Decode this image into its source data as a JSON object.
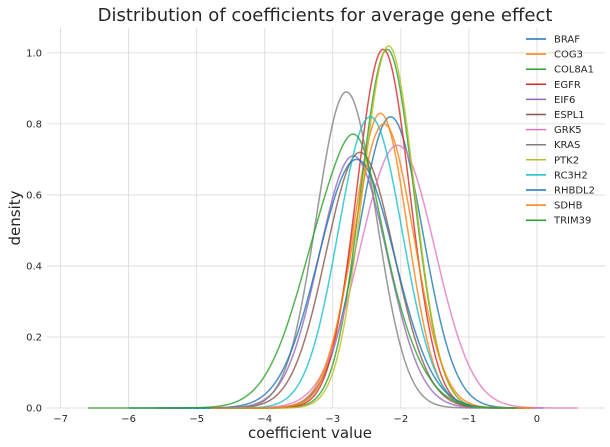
{
  "chart_data": {
    "type": "line",
    "title": "Distribution of coefficients for average gene effect",
    "xlabel": "coefficient value",
    "ylabel": "density",
    "xlim": [
      -7.2,
      1.0
    ],
    "ylim": [
      0,
      1.07
    ],
    "xticks": [
      "−7",
      "−6",
      "−5",
      "−4",
      "−3",
      "−2",
      "−1",
      "0"
    ],
    "yticks": [
      "0.0",
      "0.2",
      "0.4",
      "0.6",
      "0.8",
      "1.0"
    ],
    "grid": true,
    "legend_position": "top-right",
    "series": [
      {
        "name": "BRAF",
        "color": "#1f77b4",
        "mean": -2.15,
        "sd": 0.47,
        "peak": 0.82,
        "xmin": -4.5,
        "xmax": 0.1
      },
      {
        "name": "COG3",
        "color": "#ff7f0e",
        "mean": -2.3,
        "sd": 0.4,
        "peak": 0.83,
        "xmin": -4.6,
        "xmax": 0.0
      },
      {
        "name": "COL8A1",
        "color": "#2ca02c",
        "mean": -2.2,
        "sd": 0.39,
        "peak": 1.01,
        "xmin": -4.5,
        "xmax": -0.2
      },
      {
        "name": "EGFR",
        "color": "#d62728",
        "mean": -2.26,
        "sd": 0.39,
        "peak": 1.01,
        "xmin": -4.7,
        "xmax": -0.2
      },
      {
        "name": "EIF6",
        "color": "#9467bd",
        "mean": -2.7,
        "sd": 0.5,
        "peak": 0.71,
        "xmin": -5.4,
        "xmax": -0.4
      },
      {
        "name": "ESPL1",
        "color": "#8c564b",
        "mean": -2.6,
        "sd": 0.5,
        "peak": 0.72,
        "xmin": -5.5,
        "xmax": -0.4
      },
      {
        "name": "GRK5",
        "color": "#e377c2",
        "mean": -2.05,
        "sd": 0.55,
        "peak": 0.74,
        "xmin": -4.8,
        "xmax": 0.6
      },
      {
        "name": "KRAS",
        "color": "#7f7f7f",
        "mean": -2.8,
        "sd": 0.44,
        "peak": 0.89,
        "xmin": -5.6,
        "xmax": -0.5
      },
      {
        "name": "PTK2",
        "color": "#bcbd22",
        "mean": -2.18,
        "sd": 0.38,
        "peak": 1.02,
        "xmin": -4.5,
        "xmax": -0.1
      },
      {
        "name": "RC3H2",
        "color": "#17becf",
        "mean": -2.45,
        "sd": 0.47,
        "peak": 0.82,
        "xmin": -5.2,
        "xmax": -0.2
      },
      {
        "name": "RHBDL2",
        "color": "#1f77b4",
        "mean": -2.65,
        "sd": 0.56,
        "peak": 0.7,
        "xmin": -6.0,
        "xmax": -0.3
      },
      {
        "name": "SDHB",
        "color": "#ff7f0e",
        "mean": -2.25,
        "sd": 0.44,
        "peak": 0.8,
        "xmin": -4.8,
        "xmax": -0.1
      },
      {
        "name": "TRIM39",
        "color": "#2ca02c",
        "mean": -2.8,
        "sd": 0.6,
        "peak": 0.67,
        "xmin": -6.6,
        "xmax": -0.3
      }
    ],
    "extra_bumps": [
      {
        "series": "TRIM39",
        "mean": -2.6,
        "sd": 0.25,
        "height": 0.12
      }
    ]
  }
}
